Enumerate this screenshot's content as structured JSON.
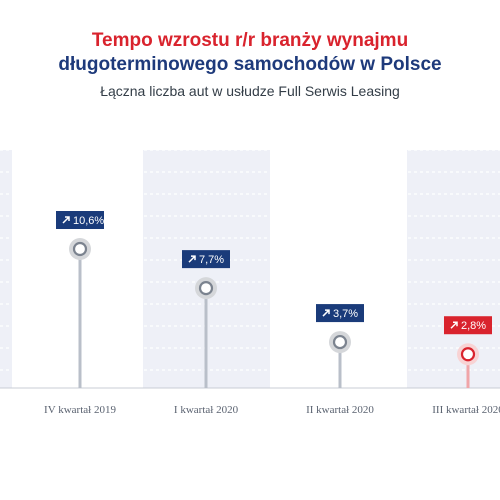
{
  "chart_data": {
    "type": "lollipop",
    "title_line1": "Tempo wzrostu r/r branży wynajmu",
    "title_line2": "długoterminowego samochodów w Polsce",
    "subtitle": "Łączna liczba aut w usłudze Full Serwis Leasing",
    "categories": [
      "IV kwartał 2019",
      "I kwartał 2020",
      "II kwartał 2020",
      "III kwartał 2020"
    ],
    "values": [
      10.6,
      7.7,
      3.7,
      2.8
    ],
    "value_labels": [
      "10,6%",
      "7,7%",
      "3,7%",
      "2,8%"
    ],
    "highlight_index": 3,
    "ylim": [
      0,
      13
    ],
    "grid": true,
    "colors": {
      "title_red": "#d9232d",
      "title_navy": "#1e3a7b",
      "badge_navy": "#1a3b7a",
      "badge_red": "#d9232d",
      "stem_gray": "#b9bfc9",
      "stem_red": "#f0a5a8",
      "marker_halo_gray": "#d5d7da",
      "marker_halo_red": "#f8d3d4",
      "band": "#eef0f7",
      "axis_label": "#5a6270"
    }
  }
}
